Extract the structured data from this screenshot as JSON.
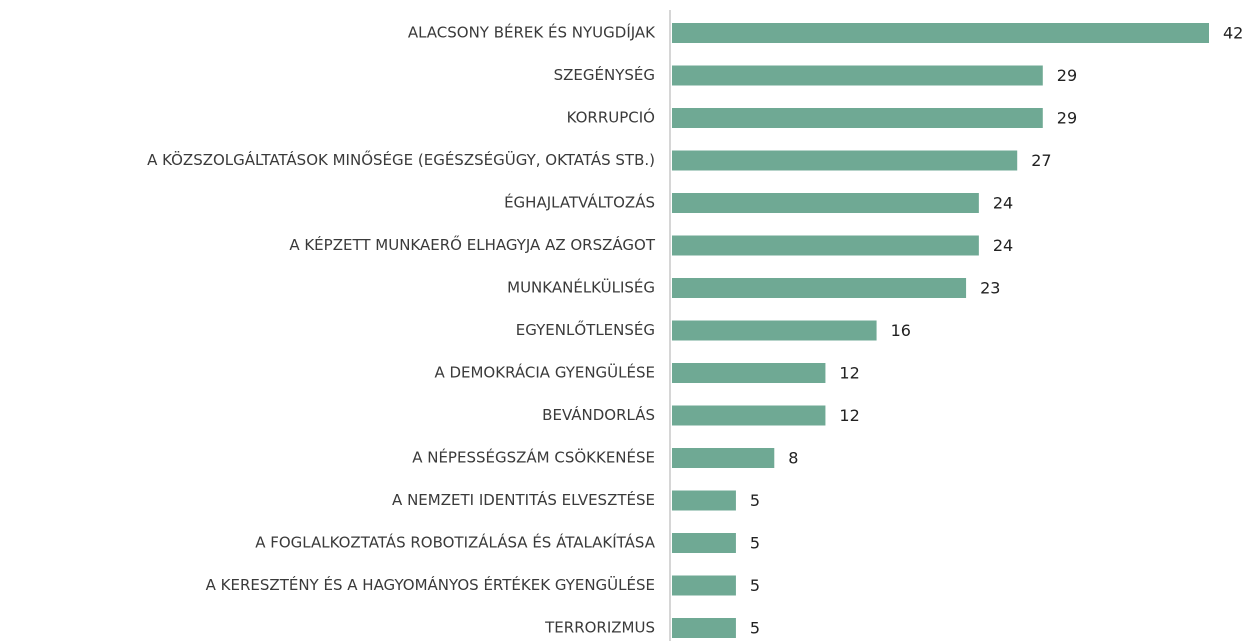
{
  "chart_data": {
    "type": "bar",
    "orientation": "horizontal",
    "color": "#6fa994",
    "categories": [
      "ALACSONY BÉREK ÉS NYUGDÍJAK",
      "SZEGÉNYSÉG",
      "KORRUPCIÓ",
      "A KÖZSZOLGÁLTATÁSOK MINŐSÉGE (EGÉSZSÉGÜGY, OKTATÁS STB.)",
      "ÉGHAJLATVÁLTOZÁS",
      "A KÉPZETT MUNKAERŐ ELHAGYJA AZ ORSZÁGOT",
      "MUNKANÉLKÜLISÉG",
      "EGYENLŐTLENSÉG",
      "A DEMOKRÁCIA GYENGÜLÉSE",
      "BEVÁNDORLÁS",
      "A NÉPESSÉGSZÁM CSÖKKENÉSE",
      "A NEMZETI IDENTITÁS ELVESZTÉSE",
      "A FOGLALKOZTATÁS ROBOTIZÁLÁSA ÉS ÁTALAKÍTÁSA",
      "A KERESZTÉNY ÉS A HAGYOMÁNYOS ÉRTÉKEK GYENGÜLÉSE",
      "TERRORIZMUS"
    ],
    "values": [
      42,
      29,
      29,
      27,
      24,
      24,
      23,
      16,
      12,
      12,
      8,
      5,
      5,
      5,
      5
    ]
  }
}
